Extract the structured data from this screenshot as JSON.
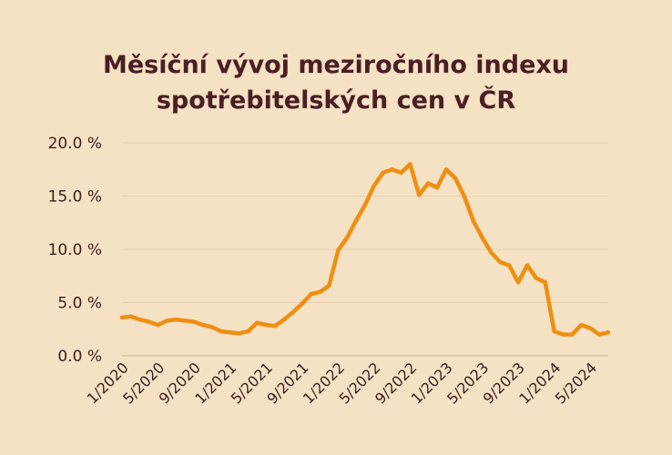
{
  "chart_data": {
    "type": "line",
    "title": [
      "Měsíční vývoj meziročního indexu",
      "spotřebitelských cen v ČR"
    ],
    "xlabel": "",
    "ylabel": "",
    "ylim": [
      0,
      20
    ],
    "y_ticks": [
      "0.0 %",
      "5.0 %",
      "10.0 %",
      "15.0 %",
      "20.0 %"
    ],
    "y_tick_values": [
      0,
      5,
      10,
      15,
      20
    ],
    "x_tick_labels": [
      "1/2020",
      "5/2020",
      "9/2020",
      "1/2021",
      "5/2021",
      "9/2021",
      "1/2022",
      "5/2022",
      "9/2022",
      "1/2023",
      "5/2023",
      "9/2023",
      "1/2024",
      "5/2024"
    ],
    "x_tick_index": [
      0,
      4,
      8,
      12,
      16,
      20,
      24,
      28,
      32,
      36,
      40,
      44,
      48,
      52
    ],
    "grid": "horizontal",
    "line_color": "#ee8f12",
    "categories": [
      "1/2020",
      "2/2020",
      "3/2020",
      "4/2020",
      "5/2020",
      "6/2020",
      "7/2020",
      "8/2020",
      "9/2020",
      "10/2020",
      "11/2020",
      "12/2020",
      "1/2021",
      "2/2021",
      "3/2021",
      "4/2021",
      "5/2021",
      "6/2021",
      "7/2021",
      "8/2021",
      "9/2021",
      "10/2021",
      "11/2021",
      "12/2021",
      "1/2022",
      "2/2022",
      "3/2022",
      "4/2022",
      "5/2022",
      "6/2022",
      "7/2022",
      "8/2022",
      "9/2022",
      "10/2022",
      "11/2022",
      "12/2022",
      "1/2023",
      "2/2023",
      "3/2023",
      "4/2023",
      "5/2023",
      "6/2023",
      "7/2023",
      "8/2023",
      "9/2023",
      "10/2023",
      "11/2023",
      "12/2023",
      "1/2024",
      "2/2024",
      "3/2024",
      "4/2024",
      "5/2024",
      "6/2024",
      "7/2024"
    ],
    "values": [
      3.6,
      3.7,
      3.4,
      3.2,
      2.9,
      3.3,
      3.4,
      3.3,
      3.2,
      2.9,
      2.7,
      2.3,
      2.2,
      2.1,
      2.3,
      3.1,
      2.9,
      2.8,
      3.4,
      4.1,
      4.9,
      5.8,
      6.0,
      6.6,
      9.9,
      11.1,
      12.7,
      14.2,
      16.0,
      17.2,
      17.5,
      17.2,
      18.0,
      15.1,
      16.2,
      15.8,
      17.5,
      16.7,
      15.0,
      12.7,
      11.1,
      9.7,
      8.8,
      8.5,
      6.9,
      8.5,
      7.3,
      6.9,
      2.3,
      2.0,
      2.0,
      2.9,
      2.6,
      2.0,
      2.2
    ]
  }
}
